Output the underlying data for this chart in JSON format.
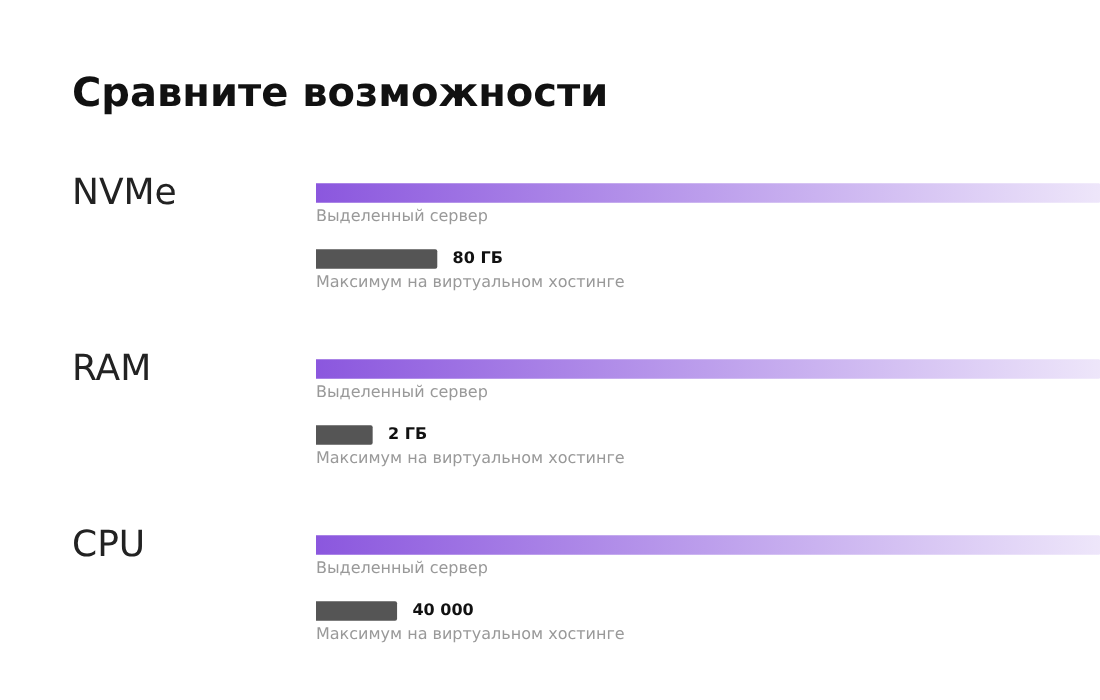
{
  "chart_data": [
    {
      "type": "bar",
      "orientation": "horizontal",
      "xlim": [
        0,
        520
      ],
      "title": "Сравните возможности",
      "ylabel": "NVMe",
      "categories": [
        "Выделенный сервер",
        "Максимум на виртуальном хостинге"
      ],
      "values": [
        520,
        80
      ],
      "colors": [
        "#8b57de",
        "#555555"
      ],
      "value_labels": [
        null,
        "80 ГБ"
      ]
    },
    {
      "type": "bar",
      "orientation": "horizontal",
      "xlim": [
        0,
        28
      ],
      "ylabel": "RAM",
      "categories": [
        "Выделенный сервер",
        "Максимум на виртуальном хостинге"
      ],
      "values": [
        28,
        2
      ],
      "colors": [
        "#8b57de",
        "#555555"
      ],
      "value_labels": [
        null,
        "2 ГБ"
      ]
    },
    {
      "type": "bar",
      "orientation": "horizontal",
      "xlim": [
        0,
        390000
      ],
      "ylabel": "CPU",
      "categories": [
        "Выделенный сервер",
        "Максимум на виртуальном хостинге"
      ],
      "values": [
        390000,
        40000
      ],
      "colors": [
        "#8b57de",
        "#555555"
      ],
      "value_labels": [
        null,
        "40 000"
      ]
    }
  ]
}
